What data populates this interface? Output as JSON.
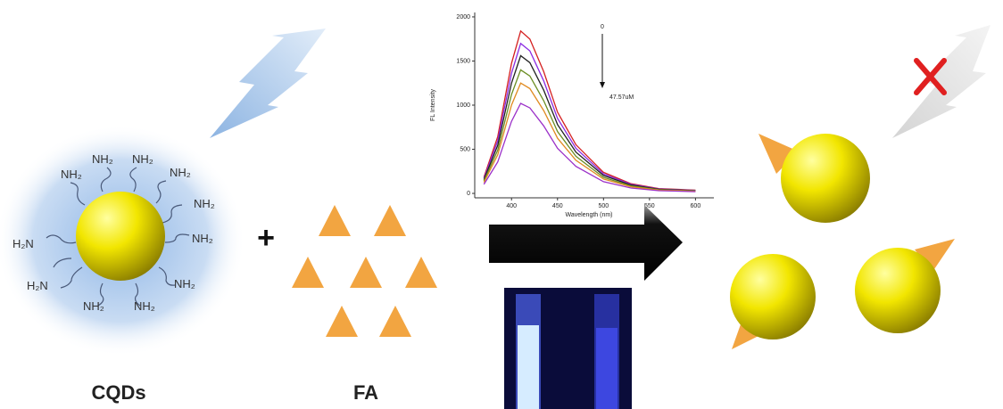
{
  "diagram": {
    "labels": {
      "cqds": "CQDs",
      "fa": "FA",
      "plus": "+"
    },
    "amines": [
      "NH₂",
      "NH₂",
      "NH₂",
      "NH₂",
      "NH₂",
      "NH₂",
      "H₂N",
      "NH₂",
      "H₂N",
      "NH₂",
      "NH₂"
    ]
  },
  "chart_data": {
    "type": "line",
    "y_label": "FL Intensity",
    "x_label": "Wavelength (nm)",
    "annotation_start": "0",
    "annotation_end": "47.57uM",
    "x": [
      370,
      385,
      400,
      410,
      420,
      435,
      450,
      470,
      500,
      530,
      560,
      600
    ],
    "series": [
      {
        "color": "#d42020",
        "values": [
          184,
          644,
          1472,
          1840,
          1748,
          1380,
          920,
          552,
          239,
          110,
          55,
          37
        ]
      },
      {
        "color": "#8a2be2",
        "values": [
          170,
          595,
          1360,
          1700,
          1615,
          1275,
          850,
          510,
          221,
          102,
          51,
          34
        ]
      },
      {
        "color": "#222222",
        "values": [
          156,
          546,
          1248,
          1560,
          1482,
          1170,
          780,
          468,
          203,
          94,
          47,
          31
        ]
      },
      {
        "color": "#6b8e23",
        "values": [
          140,
          490,
          1120,
          1400,
          1330,
          1050,
          700,
          420,
          182,
          84,
          42,
          28
        ]
      },
      {
        "color": "#e08a20",
        "values": [
          125,
          438,
          1000,
          1250,
          1188,
          938,
          625,
          375,
          163,
          75,
          38,
          25
        ]
      },
      {
        "color": "#9b30c8",
        "values": [
          102,
          357,
          816,
          1020,
          969,
          765,
          510,
          306,
          133,
          61,
          31,
          20
        ]
      }
    ],
    "xlim": [
      360,
      620
    ],
    "ylim": [
      -50,
      2050
    ],
    "xticks": [
      400,
      450,
      500,
      550,
      600
    ],
    "yticks": [
      0,
      500,
      1000,
      1500,
      2000
    ]
  }
}
